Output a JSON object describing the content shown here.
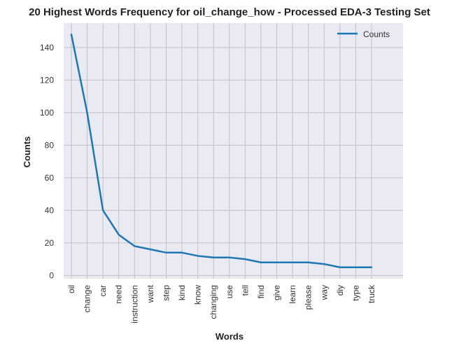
{
  "chart_data": {
    "type": "line",
    "title": "20 Highest Words Frequency for oil_change_how - Processed EDA-3 Testing Set",
    "xlabel": "Words",
    "ylabel": "Counts",
    "categories": [
      "oil",
      "change",
      "car",
      "need",
      "instruction",
      "want",
      "step",
      "kind",
      "know",
      "changing",
      "use",
      "tell",
      "find",
      "give",
      "learn",
      "please",
      "way",
      "diy",
      "type",
      "truck"
    ],
    "series": [
      {
        "name": "Counts",
        "values": [
          148,
          100,
          40,
          25,
          18,
          16,
          14,
          14,
          12,
          11,
          11,
          10,
          8,
          8,
          8,
          8,
          7,
          5,
          5,
          5
        ],
        "color": "#1f77b4"
      }
    ],
    "ylim": [
      -2,
      155
    ],
    "yticks": [
      0,
      20,
      40,
      60,
      80,
      100,
      120,
      140
    ],
    "grid": true,
    "legend_position": "top-right",
    "background_color": "#eaeaf2",
    "grid_color": "#c0c0c8"
  }
}
